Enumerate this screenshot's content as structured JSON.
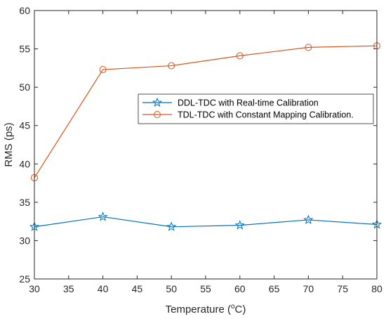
{
  "chart_data": {
    "type": "line",
    "x": [
      30,
      40,
      50,
      60,
      70,
      80
    ],
    "series": [
      {
        "name": "DDL-TDC with Real-time Calibration",
        "values": [
          31.8,
          33.1,
          31.8,
          32.0,
          32.7,
          32.1
        ],
        "color": "#0072BD",
        "marker": "star"
      },
      {
        "name": "TDL-TDC with Constant Mapping Calibration.",
        "values": [
          38.2,
          52.3,
          52.8,
          54.1,
          55.2,
          55.4
        ],
        "color": "#D95319",
        "marker": "circle"
      }
    ],
    "xlabel": "Temperature (",
    "xlabel_sup": "o",
    "xlabel_unit": "C)",
    "ylabel": "RMS (ps)",
    "xlim": [
      30,
      80
    ],
    "ylim": [
      25,
      60
    ],
    "xticks": [
      30,
      35,
      40,
      45,
      50,
      55,
      60,
      65,
      70,
      75,
      80
    ],
    "yticks": [
      25,
      30,
      35,
      40,
      45,
      50,
      55,
      60
    ],
    "grid": false,
    "legend_position": "right"
  }
}
